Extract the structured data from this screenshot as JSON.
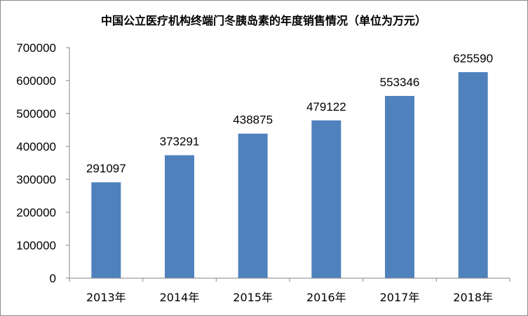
{
  "chart_data": {
    "type": "bar",
    "title": "中国公立医疗机构终端门冬胰岛素的年度销售情况（单位为万元）",
    "categories": [
      "2013年",
      "2014年",
      "2015年",
      "2016年",
      "2017年",
      "2018年"
    ],
    "values": [
      291097,
      373291,
      438875,
      479122,
      553346,
      625590
    ],
    "data_labels": [
      "291097",
      "373291",
      "438875",
      "479122",
      "553346",
      "625590"
    ],
    "ylim": [
      0,
      700000
    ],
    "yticks": [
      "0",
      "100000",
      "200000",
      "300000",
      "400000",
      "500000",
      "600000",
      "700000"
    ],
    "grid": false,
    "legend": "none",
    "colors": {
      "bar": "#4f81bd",
      "axis": "#868686"
    }
  }
}
